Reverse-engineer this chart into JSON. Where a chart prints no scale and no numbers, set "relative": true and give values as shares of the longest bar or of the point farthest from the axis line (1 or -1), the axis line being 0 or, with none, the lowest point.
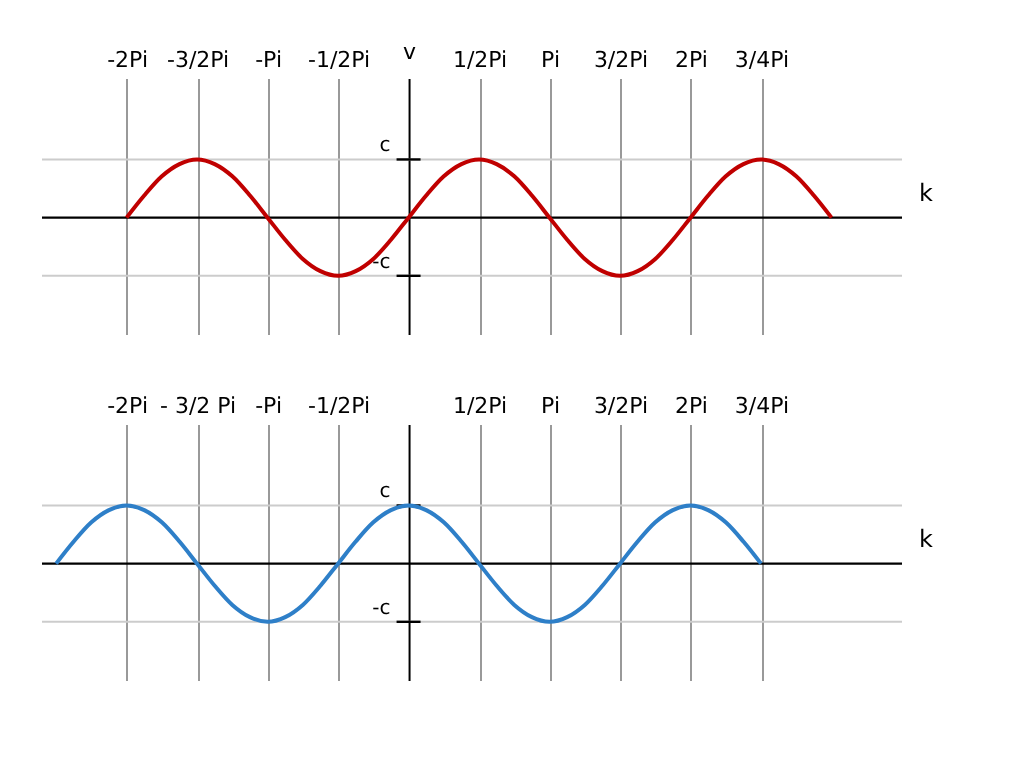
{
  "chart_data": [
    {
      "type": "line",
      "relative": true,
      "xlabel": "k",
      "ylabel": "v",
      "xlim": [
        -2.6,
        3.5
      ],
      "grid": true,
      "marker": "none",
      "line_style": "solid",
      "xticks": [
        {
          "value": -2,
          "label": "-2Pi"
        },
        {
          "value": -1.5,
          "label": "-3/2Pi"
        },
        {
          "value": -1,
          "label": "-Pi"
        },
        {
          "value": -0.5,
          "label": "-1/2Pi"
        },
        {
          "value": 0.5,
          "label": "1/2Pi"
        },
        {
          "value": 1,
          "label": "Pi"
        },
        {
          "value": 1.5,
          "label": "3/2Pi"
        },
        {
          "value": 2,
          "label": "2Pi"
        },
        {
          "value": 2.5,
          "label": "3/4Pi"
        }
      ],
      "ref_lines": [
        {
          "axis": "y",
          "value": 1,
          "label": "c"
        },
        {
          "axis": "y",
          "value": -1,
          "label": "-c"
        }
      ],
      "series": [
        {
          "color": "#c00000",
          "x": [
            -2,
            -1.875,
            -1.75,
            -1.625,
            -1.5,
            -1.375,
            -1.25,
            -1.125,
            -1,
            -0.875,
            -0.75,
            -0.625,
            -0.5,
            -0.375,
            -0.25,
            -0.125,
            0,
            0.125,
            0.25,
            0.375,
            0.5,
            0.625,
            0.75,
            0.875,
            1,
            1.125,
            1.25,
            1.375,
            1.5,
            1.625,
            1.75,
            1.875,
            2,
            2.125,
            2.25,
            2.375,
            2.5,
            2.625,
            2.75,
            2.875,
            3
          ],
          "values": [
            0,
            0.38,
            0.71,
            0.92,
            1,
            0.92,
            0.71,
            0.38,
            0,
            -0.38,
            -0.71,
            -0.92,
            -1,
            -0.92,
            -0.71,
            -0.38,
            0,
            0.38,
            0.71,
            0.92,
            1,
            0.92,
            0.71,
            0.38,
            0,
            -0.38,
            -0.71,
            -0.92,
            -1,
            -0.92,
            -0.71,
            -0.38,
            0,
            0.38,
            0.71,
            0.92,
            1,
            0.92,
            0.71,
            0.38,
            0
          ]
        }
      ]
    },
    {
      "type": "line",
      "relative": true,
      "xlabel": "k",
      "xlim": [
        -2.6,
        3.5
      ],
      "grid": true,
      "marker": "none",
      "line_style": "solid",
      "xticks": [
        {
          "value": -2,
          "label": "-2Pi"
        },
        {
          "value": -1.5,
          "label": "- 3/2 Pi"
        },
        {
          "value": -1,
          "label": "-Pi"
        },
        {
          "value": -0.5,
          "label": "-1/2Pi"
        },
        {
          "value": 0.5,
          "label": "1/2Pi"
        },
        {
          "value": 1,
          "label": "Pi"
        },
        {
          "value": 1.5,
          "label": "3/2Pi"
        },
        {
          "value": 2,
          "label": "2Pi"
        },
        {
          "value": 2.5,
          "label": "3/4Pi"
        }
      ],
      "ref_lines": [
        {
          "axis": "y",
          "value": 1,
          "label": "c"
        },
        {
          "axis": "y",
          "value": -1,
          "label": "-c"
        }
      ],
      "series": [
        {
          "color": "#2e7fc8",
          "x": [
            -2.5,
            -2.375,
            -2.25,
            -2.125,
            -2,
            -1.875,
            -1.75,
            -1.625,
            -1.5,
            -1.375,
            -1.25,
            -1.125,
            -1,
            -0.875,
            -0.75,
            -0.625,
            -0.5,
            -0.375,
            -0.25,
            -0.125,
            0,
            0.125,
            0.25,
            0.375,
            0.5,
            0.625,
            0.75,
            0.875,
            1,
            1.125,
            1.25,
            1.375,
            1.5,
            1.625,
            1.75,
            1.875,
            2,
            2.125,
            2.25,
            2.375,
            2.5
          ],
          "values": [
            0,
            0.38,
            0.71,
            0.92,
            1,
            0.92,
            0.71,
            0.38,
            0,
            -0.38,
            -0.71,
            -0.92,
            -1,
            -0.92,
            -0.71,
            -0.38,
            0,
            0.38,
            0.71,
            0.92,
            1,
            0.92,
            0.71,
            0.38,
            0,
            -0.38,
            -0.71,
            -0.92,
            -1,
            -0.92,
            -0.71,
            -0.38,
            0,
            0.38,
            0.71,
            0.92,
            1,
            0.92,
            0.71,
            0.38,
            0
          ]
        }
      ]
    }
  ]
}
